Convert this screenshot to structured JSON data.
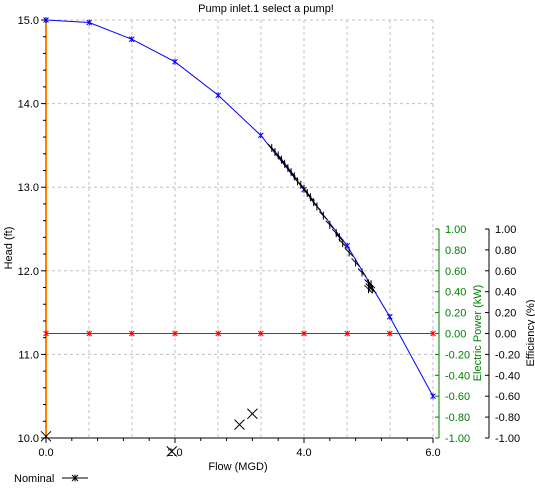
{
  "chart_data": {
    "type": "line",
    "title": "Pump inlet.1 select a pump!",
    "xlabel": "Flow (MGD)",
    "ylabel": "Head (ft)",
    "xlim": [
      0,
      6
    ],
    "ylim": [
      10,
      15
    ],
    "x_ticks": [
      "0.0",
      "2.0",
      "4.0",
      "6.0"
    ],
    "y_ticks": [
      "10.0",
      "11.0",
      "12.0",
      "13.0",
      "14.0",
      "15.0"
    ],
    "grid": true,
    "right_axes": [
      {
        "label": "Electric Power (kW)",
        "color": "#008000",
        "range": [
          -1,
          1
        ],
        "ticks": [
          "1.00",
          "0.80",
          "0.60",
          "0.40",
          "0.20",
          "0.00",
          "-0.20",
          "-0.40",
          "-0.60",
          "-0.80",
          "-1.00"
        ]
      },
      {
        "label": "Efficiency (%)",
        "color": "#000000",
        "range": [
          -1,
          1
        ],
        "ticks": [
          "1.00",
          "0.80",
          "0.60",
          "0.40",
          "0.20",
          "0.00",
          "-0.20",
          "-0.40",
          "-0.60",
          "-0.80",
          "-1.00"
        ]
      }
    ],
    "legend": {
      "position": "bottom-left",
      "entries": [
        {
          "label": "Nominal",
          "color": "#000000",
          "marker": "star"
        }
      ]
    },
    "series": [
      {
        "color": "#0000ff",
        "marker": "star",
        "points": [
          [
            0.0,
            15.0
          ],
          [
            0.67,
            14.97
          ],
          [
            1.33,
            14.77
          ],
          [
            2.0,
            14.5
          ],
          [
            2.67,
            14.1
          ],
          [
            3.33,
            13.62
          ],
          [
            4.0,
            12.97
          ],
          [
            4.67,
            12.3
          ],
          [
            5.33,
            11.45
          ],
          [
            6.0,
            10.5
          ]
        ]
      },
      {
        "color": "#ff0000",
        "marker": "star",
        "axis": "right",
        "points": [
          [
            0.0,
            0.0
          ],
          [
            0.67,
            0.0
          ],
          [
            1.33,
            0.0
          ],
          [
            2.0,
            0.0
          ],
          [
            2.67,
            0.0
          ],
          [
            3.33,
            0.0
          ],
          [
            4.0,
            0.0
          ],
          [
            4.67,
            0.0
          ],
          [
            5.33,
            0.0
          ],
          [
            6.0,
            0.0
          ]
        ]
      },
      {
        "label": "Nominal",
        "color": "#000000",
        "marker": "plus",
        "points": [
          [
            3.5,
            13.47
          ],
          [
            3.55,
            13.42
          ],
          [
            3.6,
            13.38
          ],
          [
            3.65,
            13.33
          ],
          [
            3.7,
            13.28
          ],
          [
            3.75,
            13.23
          ],
          [
            3.8,
            13.18
          ],
          [
            3.85,
            13.13
          ],
          [
            3.9,
            13.07
          ],
          [
            3.95,
            13.03
          ],
          [
            4.0,
            12.98
          ],
          [
            4.05,
            12.93
          ],
          [
            4.1,
            12.88
          ],
          [
            4.15,
            12.82
          ],
          [
            4.2,
            12.77
          ],
          [
            4.3,
            12.66
          ],
          [
            4.4,
            12.55
          ],
          [
            4.5,
            12.45
          ],
          [
            4.55,
            12.4
          ],
          [
            4.6,
            12.33
          ],
          [
            4.7,
            12.22
          ],
          [
            4.8,
            12.1
          ],
          [
            4.9,
            11.98
          ],
          [
            5.0,
            11.85
          ],
          [
            5.0,
            11.78
          ],
          [
            5.02,
            11.8
          ],
          [
            5.04,
            11.84
          ],
          [
            5.06,
            11.78
          ]
        ]
      },
      {
        "color": "#000000",
        "marker": "x",
        "points": [
          [
            3.2,
            10.29
          ],
          [
            3.0,
            10.16
          ],
          [
            1.95,
            9.84
          ],
          [
            0.0,
            10.02
          ]
        ]
      }
    ]
  }
}
